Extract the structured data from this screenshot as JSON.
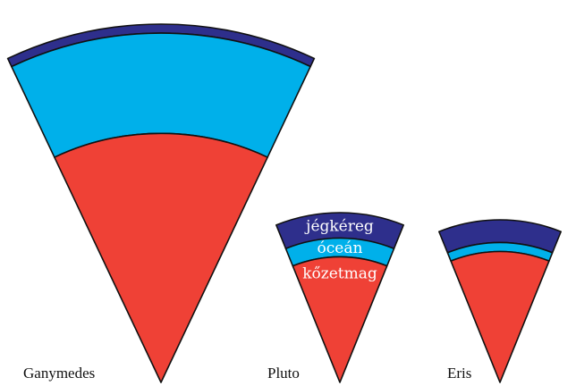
{
  "colors": {
    "ice_crust": "#2e2f8c",
    "ocean": "#00b0ea",
    "rock_core": "#ef4136",
    "outline": "#111111",
    "label_text": "#ffffff"
  },
  "bodies": [
    {
      "name": "Ganymedes",
      "layers": [
        {
          "key": "ice_crust",
          "fraction": 0.025
        },
        {
          "key": "ocean",
          "fraction": 0.28
        },
        {
          "key": "rock_core",
          "fraction": 0.695
        }
      ]
    },
    {
      "name": "Pluto",
      "layers": [
        {
          "key": "ice_crust",
          "label": "jégkéreg",
          "fraction": 0.15
        },
        {
          "key": "ocean",
          "label": "óceán",
          "fraction": 0.11
        },
        {
          "key": "rock_core",
          "label": "kőzetmag",
          "fraction": 0.74
        }
      ]
    },
    {
      "name": "Eris",
      "layers": [
        {
          "key": "ice_crust",
          "fraction": 0.14
        },
        {
          "key": "ocean",
          "fraction": 0.055
        },
        {
          "key": "rock_core",
          "fraction": 0.805
        }
      ]
    }
  ]
}
